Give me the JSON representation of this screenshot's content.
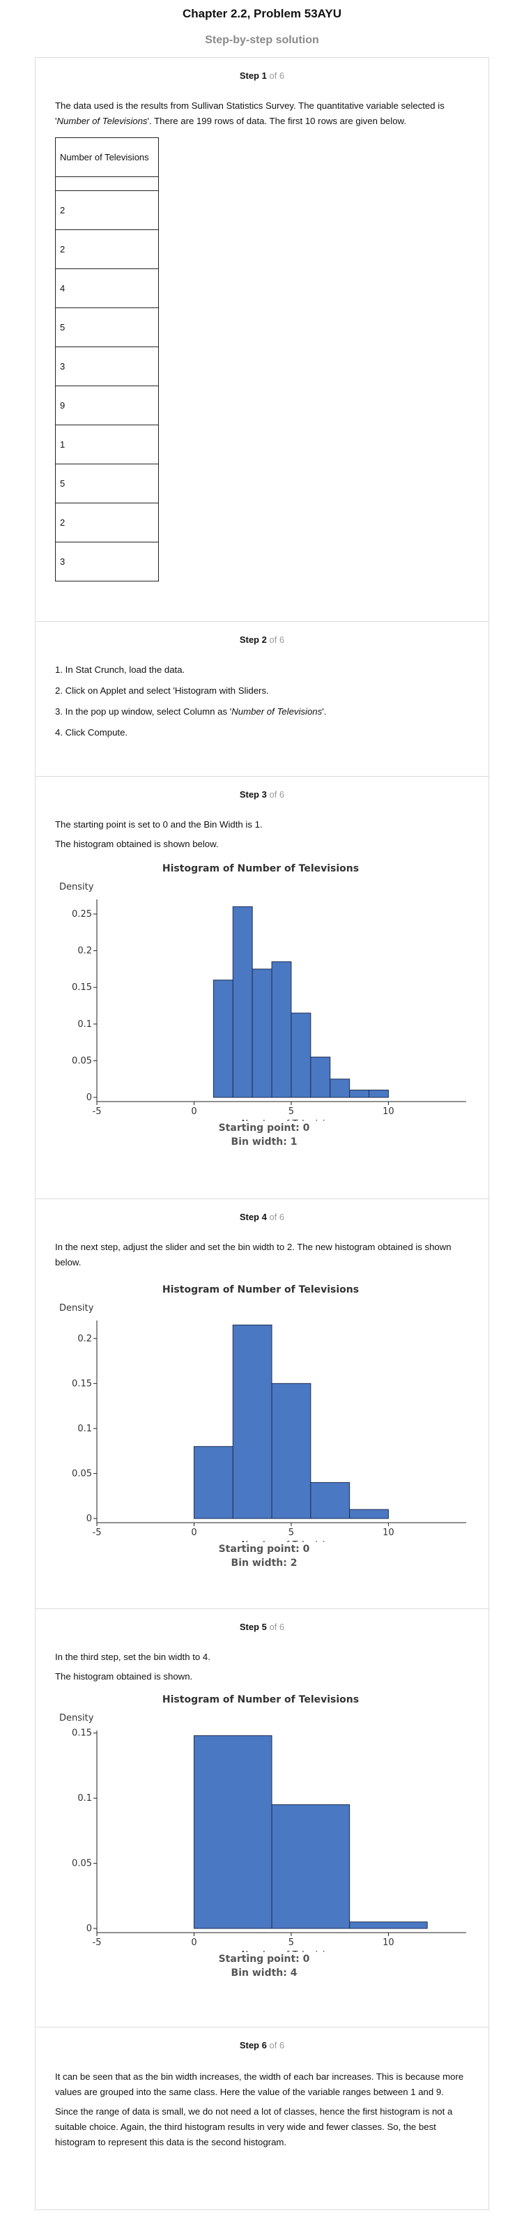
{
  "header": {
    "title": "Chapter 2.2, Problem 53AYU",
    "subtitle": "Step-by-step solution"
  },
  "steps": [
    {
      "label": "Step 1",
      "of": "of 6",
      "intro_a": "The data used is the results from Sullivan Statistics Survey. The quantitative variable selected is '",
      "intro_italic": "Number of Televisions",
      "intro_b": "'. There are 199 rows of data. The first 10 rows are given below.",
      "table": {
        "header": "Number of Televisions",
        "rows": [
          "2",
          "2",
          "4",
          "5",
          "3",
          "9",
          "1",
          "5",
          "2",
          "3"
        ]
      }
    },
    {
      "label": "Step 2",
      "of": "of 6",
      "items": [
        "1. In Stat Crunch, load the data.",
        "2. Click on Applet and select 'Histogram with Sliders.",
        "4. Click Compute."
      ],
      "item3_a": "3. In the pop up window, select Column as '",
      "item3_italic": "Number of Televisions",
      "item3_b": "'."
    },
    {
      "label": "Step 3",
      "of": "of 6",
      "lines": [
        "The starting point is set to 0 and the Bin Width is 1.",
        "The histogram obtained is shown below."
      ],
      "starting_point": "Starting point: 0",
      "bin_width": "Bin width: 1"
    },
    {
      "label": "Step 4",
      "of": "of 6",
      "lines": [
        "In the next step, adjust the slider and set the bin width to 2. The new histogram obtained is shown below."
      ],
      "starting_point": "Starting point: 0",
      "bin_width": "Bin width: 2"
    },
    {
      "label": "Step 5",
      "of": "of 6",
      "lines": [
        "In the third step, set the bin width to 4.",
        "The histogram obtained is shown."
      ],
      "starting_point": "Starting point: 0",
      "bin_width": "Bin width: 4"
    },
    {
      "label": "Step 6",
      "of": "of 6",
      "lines": [
        "It can be seen that as the bin width increases, the width of each bar increases. This is because more values are grouped into the same class. Here the value of the variable ranges between 1 and 9.",
        "Since the range of data is small, we do not need a lot of classes, hence the first histogram is not a suitable choice. Again, the third histogram results in very wide and fewer classes. So, the best histogram to represent this data is the second histogram."
      ]
    }
  ],
  "colors": {
    "bar": "#4a78c2",
    "bar_stroke": "#1d2e55"
  },
  "chart_data": [
    {
      "type": "bar",
      "title": "Histogram of Number of Televisions",
      "xlabel": "Number of Televisions",
      "ylabel": "Density",
      "xlim": [
        -5,
        14
      ],
      "ylim": [
        0,
        0.27
      ],
      "xticks": [
        -5,
        0,
        5,
        10
      ],
      "yticks": [
        0,
        0.05,
        0.1,
        0.15,
        0.2,
        0.25
      ],
      "ytick_labels": [
        "0",
        "0.05",
        "0.1",
        "0.15",
        "0.2",
        "0.25"
      ],
      "bins": [
        {
          "x0": 1,
          "x1": 2,
          "y": 0.16
        },
        {
          "x0": 2,
          "x1": 3,
          "y": 0.26
        },
        {
          "x0": 3,
          "x1": 4,
          "y": 0.175
        },
        {
          "x0": 4,
          "x1": 5,
          "y": 0.185
        },
        {
          "x0": 5,
          "x1": 6,
          "y": 0.115
        },
        {
          "x0": 6,
          "x1": 7,
          "y": 0.055
        },
        {
          "x0": 7,
          "x1": 8,
          "y": 0.025
        },
        {
          "x0": 8,
          "x1": 9,
          "y": 0.01
        },
        {
          "x0": 9,
          "x1": 10,
          "y": 0.01
        }
      ]
    },
    {
      "type": "bar",
      "title": "Histogram of Number of Televisions",
      "xlabel": "Number of Televisions",
      "ylabel": "Density",
      "xlim": [
        -5,
        14
      ],
      "ylim": [
        0,
        0.22
      ],
      "xticks": [
        -5,
        0,
        5,
        10
      ],
      "yticks": [
        0,
        0.05,
        0.1,
        0.15,
        0.2
      ],
      "ytick_labels": [
        "0",
        "0.05",
        "0.1",
        "0.15",
        "0.2"
      ],
      "bins": [
        {
          "x0": 0,
          "x1": 2,
          "y": 0.08
        },
        {
          "x0": 2,
          "x1": 4,
          "y": 0.215
        },
        {
          "x0": 4,
          "x1": 6,
          "y": 0.15
        },
        {
          "x0": 6,
          "x1": 8,
          "y": 0.04
        },
        {
          "x0": 8,
          "x1": 10,
          "y": 0.01
        }
      ]
    },
    {
      "type": "bar",
      "title": "Histogram of Number of Televisions",
      "xlabel": "Number of Televisions",
      "ylabel": "Density",
      "xlim": [
        -5,
        14
      ],
      "ylim": [
        0,
        0.152
      ],
      "xticks": [
        -5,
        0,
        5,
        10
      ],
      "yticks": [
        0,
        0.05,
        0.1,
        0.15
      ],
      "ytick_labels": [
        "0",
        "0.05",
        "0.1",
        "0.15"
      ],
      "bins": [
        {
          "x0": 0,
          "x1": 4,
          "y": 0.148
        },
        {
          "x0": 4,
          "x1": 8,
          "y": 0.095
        },
        {
          "x0": 8,
          "x1": 12,
          "y": 0.005
        }
      ]
    }
  ]
}
